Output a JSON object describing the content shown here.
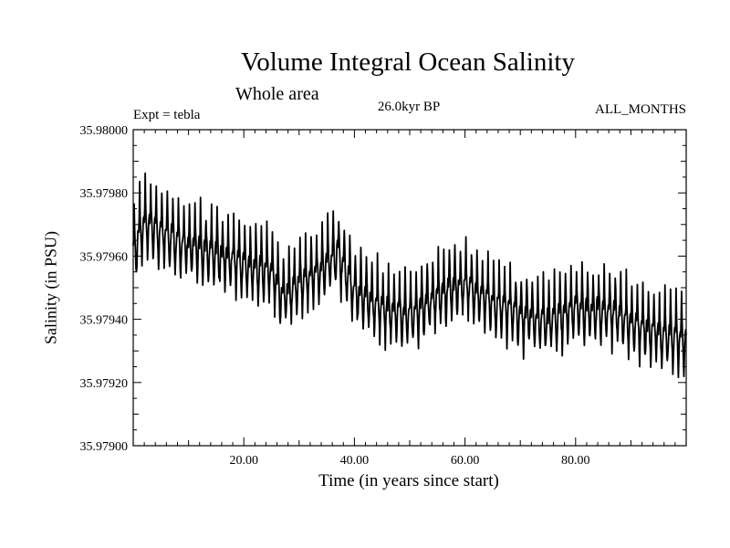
{
  "chart_data": {
    "type": "line",
    "title": "Volume Integral Ocean Salinity",
    "subtitle": "Whole area",
    "experiment": "Expt = tebla",
    "period": "26.0kyr BP",
    "months": "ALL_MONTHS",
    "xlabel": "Time (in years since start)",
    "ylabel": "Salinity (in PSU)",
    "xlim": [
      0,
      100
    ],
    "ylim": [
      35.979,
      35.98
    ],
    "x_ticks": [
      20,
      40,
      60,
      80
    ],
    "x_tick_labels": [
      "20.00",
      "40.00",
      "60.00",
      "80.00"
    ],
    "y_ticks": [
      35.979,
      35.9792,
      35.9794,
      35.9796,
      35.9798,
      35.98
    ],
    "y_tick_labels": [
      "35.97900",
      "35.97920",
      "35.97940",
      "35.97960",
      "35.97980",
      "35.98000"
    ],
    "series": [
      {
        "name": "Salinity",
        "samples_per_year": 12,
        "trend_knots": {
          "x": [
            0,
            2,
            5,
            10,
            15,
            20,
            25,
            27,
            30,
            35,
            37,
            40,
            45,
            50,
            55,
            60,
            65,
            70,
            75,
            80,
            85,
            90,
            95,
            100
          ],
          "y": [
            35.97962,
            35.97972,
            35.97968,
            35.97964,
            35.97962,
            35.97958,
            35.97956,
            35.97948,
            35.97952,
            35.97958,
            35.97962,
            35.9795,
            35.97944,
            35.97942,
            35.97948,
            35.97952,
            35.97946,
            35.97942,
            35.9794,
            35.97944,
            35.97944,
            35.9794,
            35.97936,
            35.97934
          ]
        },
        "seasonal_amplitude": 0.00012
      }
    ]
  }
}
